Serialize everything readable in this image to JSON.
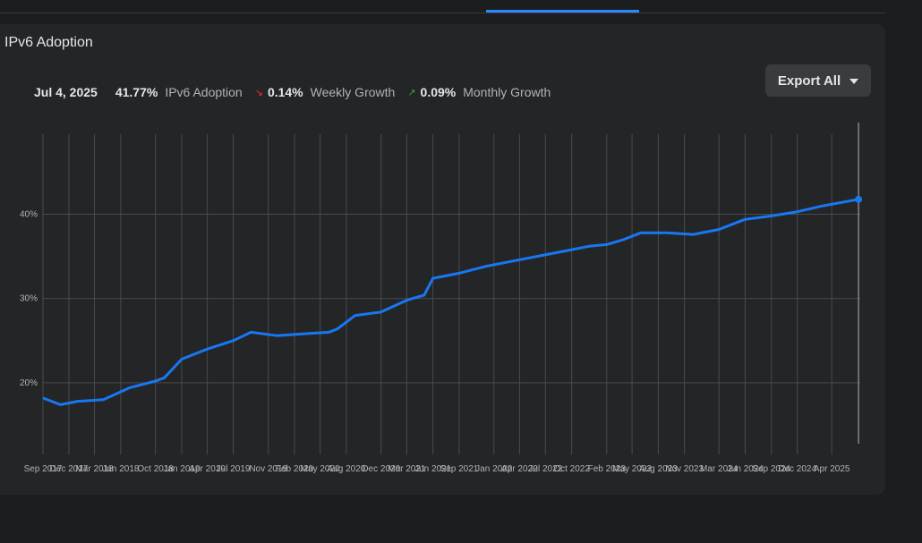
{
  "card": {
    "title": "IPv6 Adoption",
    "export_label": "Export All"
  },
  "stats": {
    "date": "Jul 4, 2025",
    "adoption_value": "41.77%",
    "adoption_label": "IPv6 Adoption",
    "weekly_value": "0.14%",
    "weekly_label": "Weekly Growth",
    "monthly_value": "0.09%",
    "monthly_label": "Monthly Growth"
  },
  "colors": {
    "accent": "#2d88ff",
    "series": "#1877f2",
    "down": "#f02849",
    "up": "#31a24c"
  },
  "chart_data": {
    "type": "line",
    "title": "",
    "xlabel": "",
    "ylabel": "",
    "ylim": [
      11.5,
      49.5
    ],
    "xlim": [
      "2017-09-01",
      "2025-07-10"
    ],
    "yticks": [
      "20%",
      "30%",
      "40%"
    ],
    "ytick_values": [
      20,
      30,
      40
    ],
    "xtick_labels": [
      "Sep 2017",
      "Dec 2017",
      "Mar 2018",
      "Jun 2018",
      "Oct 2018",
      "Jan 2019",
      "Apr 2019",
      "Jul 2019",
      "Nov 2019",
      "Feb 2020",
      "May 2020",
      "Aug 2020",
      "Dec 2020",
      "Mar 2021",
      "Jun 2021",
      "Sep 2021",
      "Jan 2022",
      "Apr 2022",
      "Jul 2022",
      "Oct 2022",
      "Feb 2023",
      "May 2023",
      "Aug 2023",
      "Nov 2023",
      "Mar 2024",
      "Jun 2024",
      "Sep 2024",
      "Dec 2024",
      "Apr 2025"
    ],
    "xtick_dates": [
      "2017-09-01",
      "2017-12-01",
      "2018-03-01",
      "2018-06-01",
      "2018-10-01",
      "2019-01-01",
      "2019-04-01",
      "2019-07-01",
      "2019-11-01",
      "2020-02-01",
      "2020-05-01",
      "2020-08-01",
      "2020-12-01",
      "2021-03-01",
      "2021-06-01",
      "2021-09-01",
      "2022-01-01",
      "2022-04-01",
      "2022-07-01",
      "2022-10-01",
      "2023-02-01",
      "2023-05-01",
      "2023-08-01",
      "2023-11-01",
      "2024-03-01",
      "2024-06-01",
      "2024-09-01",
      "2024-12-01",
      "2025-04-01"
    ],
    "grid": true,
    "series": [
      {
        "x": [
          "2017-09-01",
          "2017-11-01",
          "2018-01-01",
          "2018-04-01",
          "2018-07-01",
          "2018-10-01",
          "2018-11-01",
          "2019-01-01",
          "2019-04-01",
          "2019-07-01",
          "2019-09-01",
          "2019-12-01",
          "2020-03-01",
          "2020-06-01",
          "2020-07-01",
          "2020-09-01",
          "2020-12-01",
          "2021-03-01",
          "2021-05-01",
          "2021-06-01",
          "2021-09-01",
          "2021-12-01",
          "2022-03-01",
          "2022-06-01",
          "2022-09-01",
          "2022-12-01",
          "2023-02-01",
          "2023-04-01",
          "2023-06-01",
          "2023-09-01",
          "2023-12-01",
          "2024-03-01",
          "2024-06-01",
          "2024-09-01",
          "2024-12-01",
          "2025-03-01",
          "2025-07-04"
        ],
        "values": [
          18.2,
          17.4,
          17.8,
          18.0,
          19.4,
          20.2,
          20.6,
          22.8,
          24.0,
          25.0,
          26.0,
          25.6,
          25.8,
          26.0,
          26.4,
          28.0,
          28.4,
          29.8,
          30.4,
          32.4,
          33.0,
          33.8,
          34.4,
          35.0,
          35.6,
          36.2,
          36.4,
          37.0,
          37.8,
          37.8,
          37.6,
          38.2,
          39.4,
          39.8,
          40.3,
          41.0,
          41.77
        ]
      }
    ]
  }
}
